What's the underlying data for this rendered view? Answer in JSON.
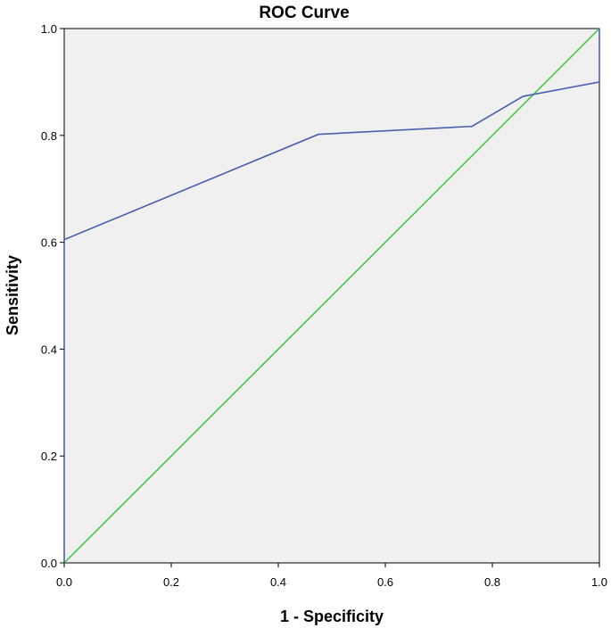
{
  "chart_data": {
    "type": "line",
    "title": "ROC Curve",
    "xlabel": "1 - Specificity",
    "ylabel": "Sensitivity",
    "xlim": [
      0,
      1
    ],
    "ylim": [
      0,
      1
    ],
    "xticks": [
      "0.0",
      "0.2",
      "0.4",
      "0.6",
      "0.8",
      "1.0"
    ],
    "yticks": [
      "0.0",
      "0.2",
      "0.4",
      "0.6",
      "0.8",
      "1.0"
    ],
    "grid": false,
    "legend": "none",
    "plot_background": "#f0f0f0",
    "series": [
      {
        "color": "#4a5fb0",
        "x": [
          0.0,
          0.0,
          0.475,
          0.762,
          0.857,
          1.0,
          1.0
        ],
        "y": [
          0.0,
          0.605,
          0.802,
          0.817,
          0.873,
          0.9,
          1.0
        ]
      },
      {
        "color": "#3cc43c",
        "x": [
          0.0,
          1.0
        ],
        "y": [
          0.0,
          1.0
        ]
      }
    ]
  }
}
